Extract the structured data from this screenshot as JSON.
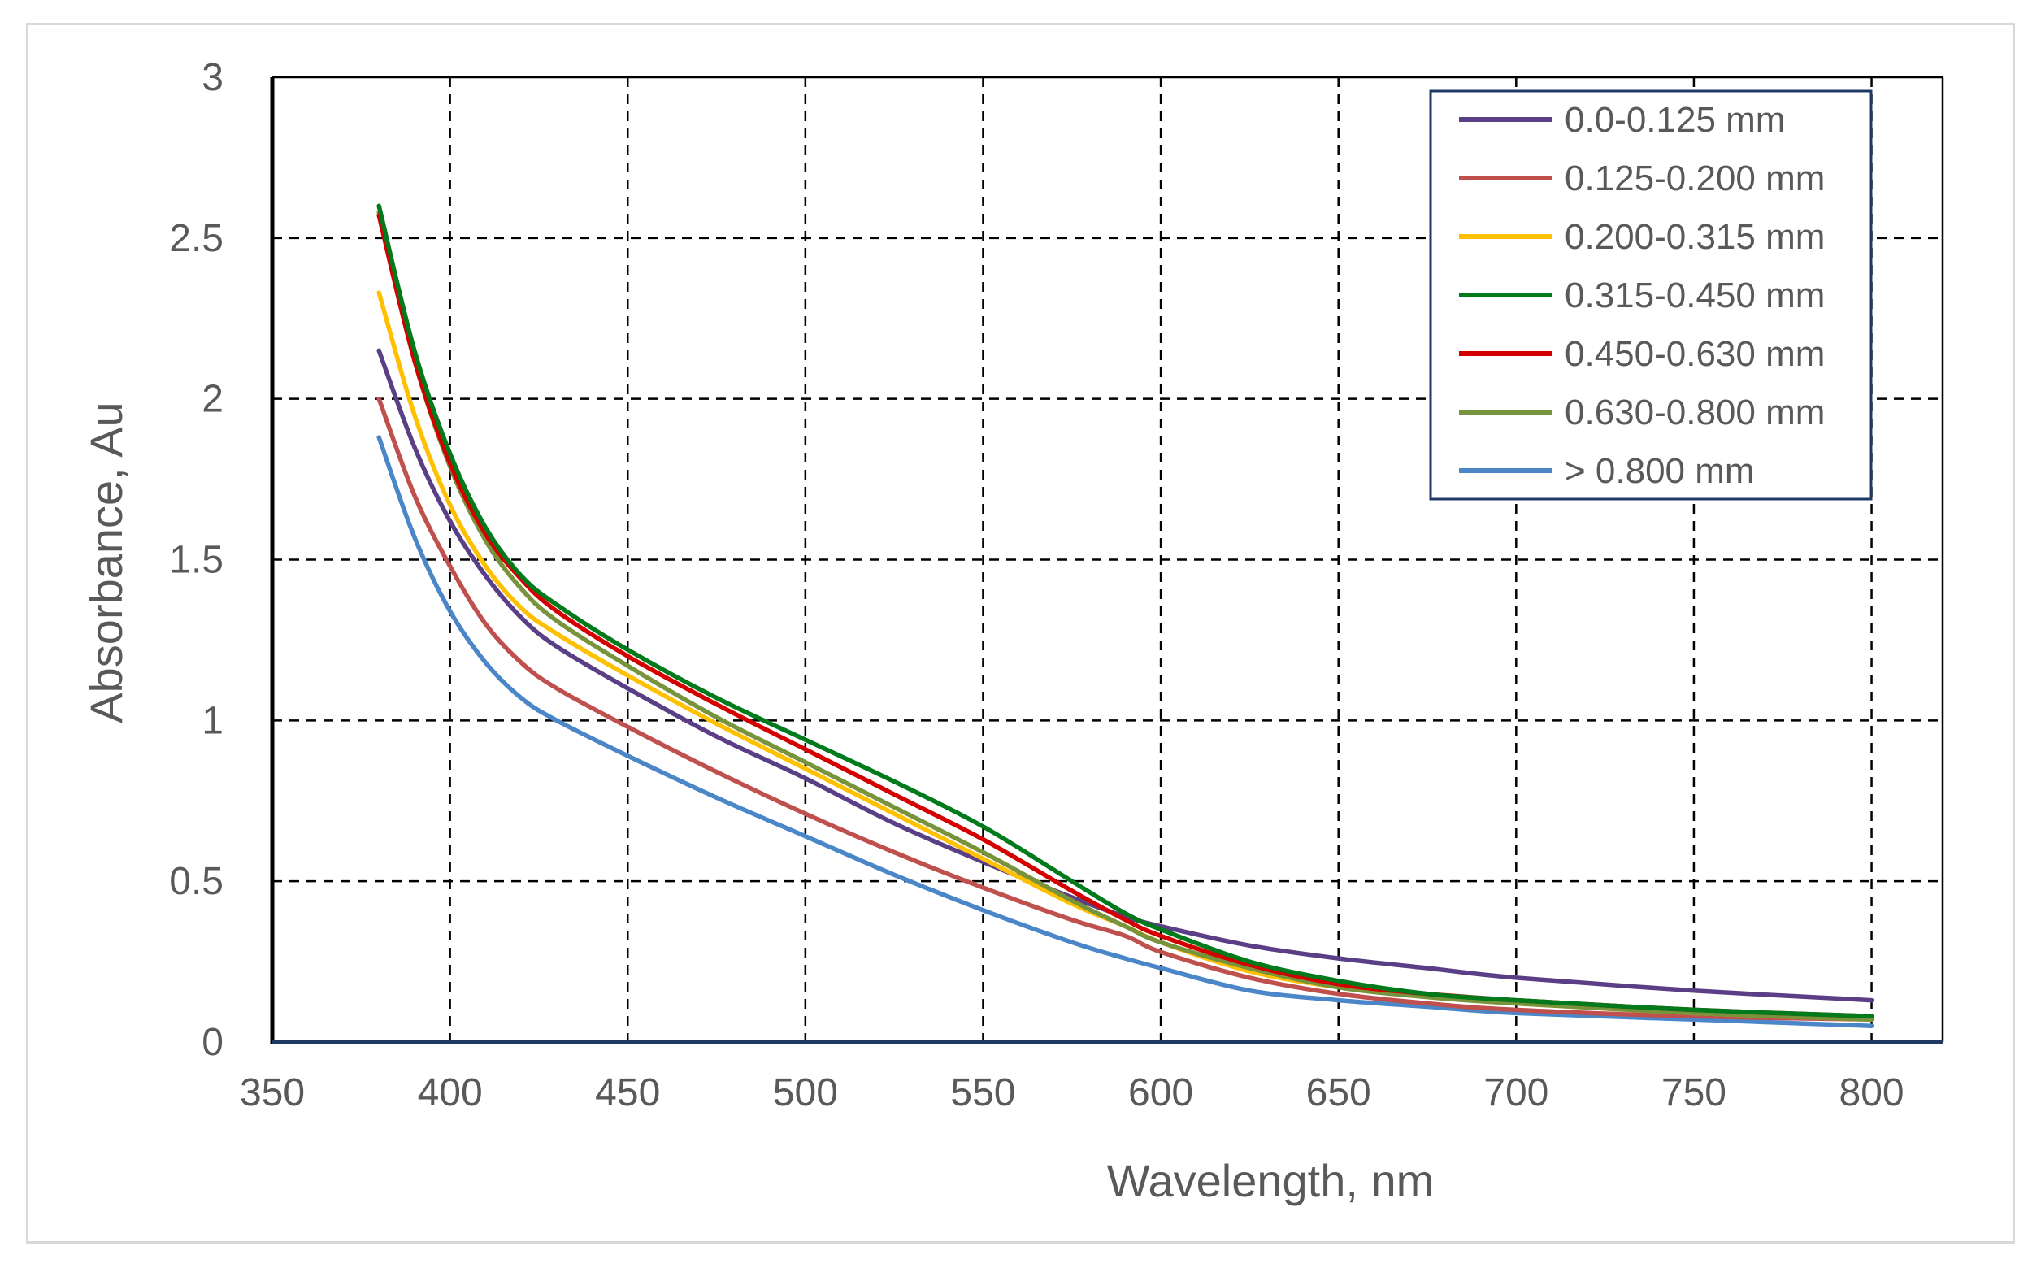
{
  "chart_data": {
    "type": "line",
    "title": "",
    "xlabel": "Wavelength, nm",
    "ylabel": "Absorbance, Au",
    "xlim": [
      350,
      820
    ],
    "ylim": [
      0,
      3
    ],
    "x_ticks": [
      "350",
      "400",
      "450",
      "500",
      "550",
      "600",
      "650",
      "700",
      "750",
      "800"
    ],
    "y_ticks": [
      "0",
      "0.5",
      "1",
      "1.5",
      "2",
      "2.5",
      "3"
    ],
    "grid": true,
    "legend_position": "top-right",
    "x": [
      380,
      390,
      400,
      410,
      420,
      430,
      450,
      475,
      500,
      525,
      550,
      575,
      590,
      600,
      625,
      650,
      675,
      700,
      750,
      800
    ],
    "series": [
      {
        "name": "0.0-0.125 mm",
        "color": "#5b3f86",
        "values": [
          2.15,
          1.85,
          1.62,
          1.45,
          1.32,
          1.23,
          1.1,
          0.95,
          0.82,
          0.68,
          0.56,
          0.45,
          0.39,
          0.36,
          0.3,
          0.26,
          0.23,
          0.2,
          0.16,
          0.13
        ]
      },
      {
        "name": "0.125-0.200 mm",
        "color": "#c0504d",
        "values": [
          2.0,
          1.7,
          1.48,
          1.3,
          1.18,
          1.1,
          0.98,
          0.84,
          0.71,
          0.59,
          0.48,
          0.38,
          0.33,
          0.28,
          0.2,
          0.15,
          0.12,
          0.1,
          0.08,
          0.07
        ]
      },
      {
        "name": "0.200-0.315 mm",
        "color": "#ffc000",
        "values": [
          2.33,
          1.95,
          1.67,
          1.48,
          1.35,
          1.27,
          1.14,
          0.99,
          0.85,
          0.71,
          0.57,
          0.43,
          0.36,
          0.31,
          0.22,
          0.17,
          0.14,
          0.12,
          0.09,
          0.07
        ]
      },
      {
        "name": "0.315-0.450 mm",
        "color": "#007a1a",
        "values": [
          2.6,
          2.15,
          1.83,
          1.6,
          1.45,
          1.36,
          1.22,
          1.07,
          0.94,
          0.81,
          0.67,
          0.5,
          0.4,
          0.35,
          0.25,
          0.19,
          0.15,
          0.13,
          0.1,
          0.08
        ]
      },
      {
        "name": "0.450-0.630 mm",
        "color": "#d40000",
        "values": [
          2.57,
          2.12,
          1.8,
          1.58,
          1.44,
          1.34,
          1.2,
          1.05,
          0.91,
          0.77,
          0.63,
          0.47,
          0.38,
          0.33,
          0.24,
          0.18,
          0.15,
          0.13,
          0.1,
          0.08
        ]
      },
      {
        "name": "0.630-0.800 mm",
        "color": "#77933c",
        "values": [
          2.58,
          2.12,
          1.79,
          1.56,
          1.41,
          1.31,
          1.17,
          1.01,
          0.87,
          0.73,
          0.59,
          0.44,
          0.36,
          0.31,
          0.23,
          0.17,
          0.14,
          0.12,
          0.09,
          0.07
        ]
      },
      {
        "name": "> 0.800 mm",
        "color": "#4a86c8",
        "values": [
          1.88,
          1.57,
          1.34,
          1.18,
          1.07,
          1.0,
          0.89,
          0.76,
          0.64,
          0.52,
          0.41,
          0.31,
          0.26,
          0.23,
          0.16,
          0.13,
          0.11,
          0.09,
          0.07,
          0.05
        ]
      }
    ]
  }
}
